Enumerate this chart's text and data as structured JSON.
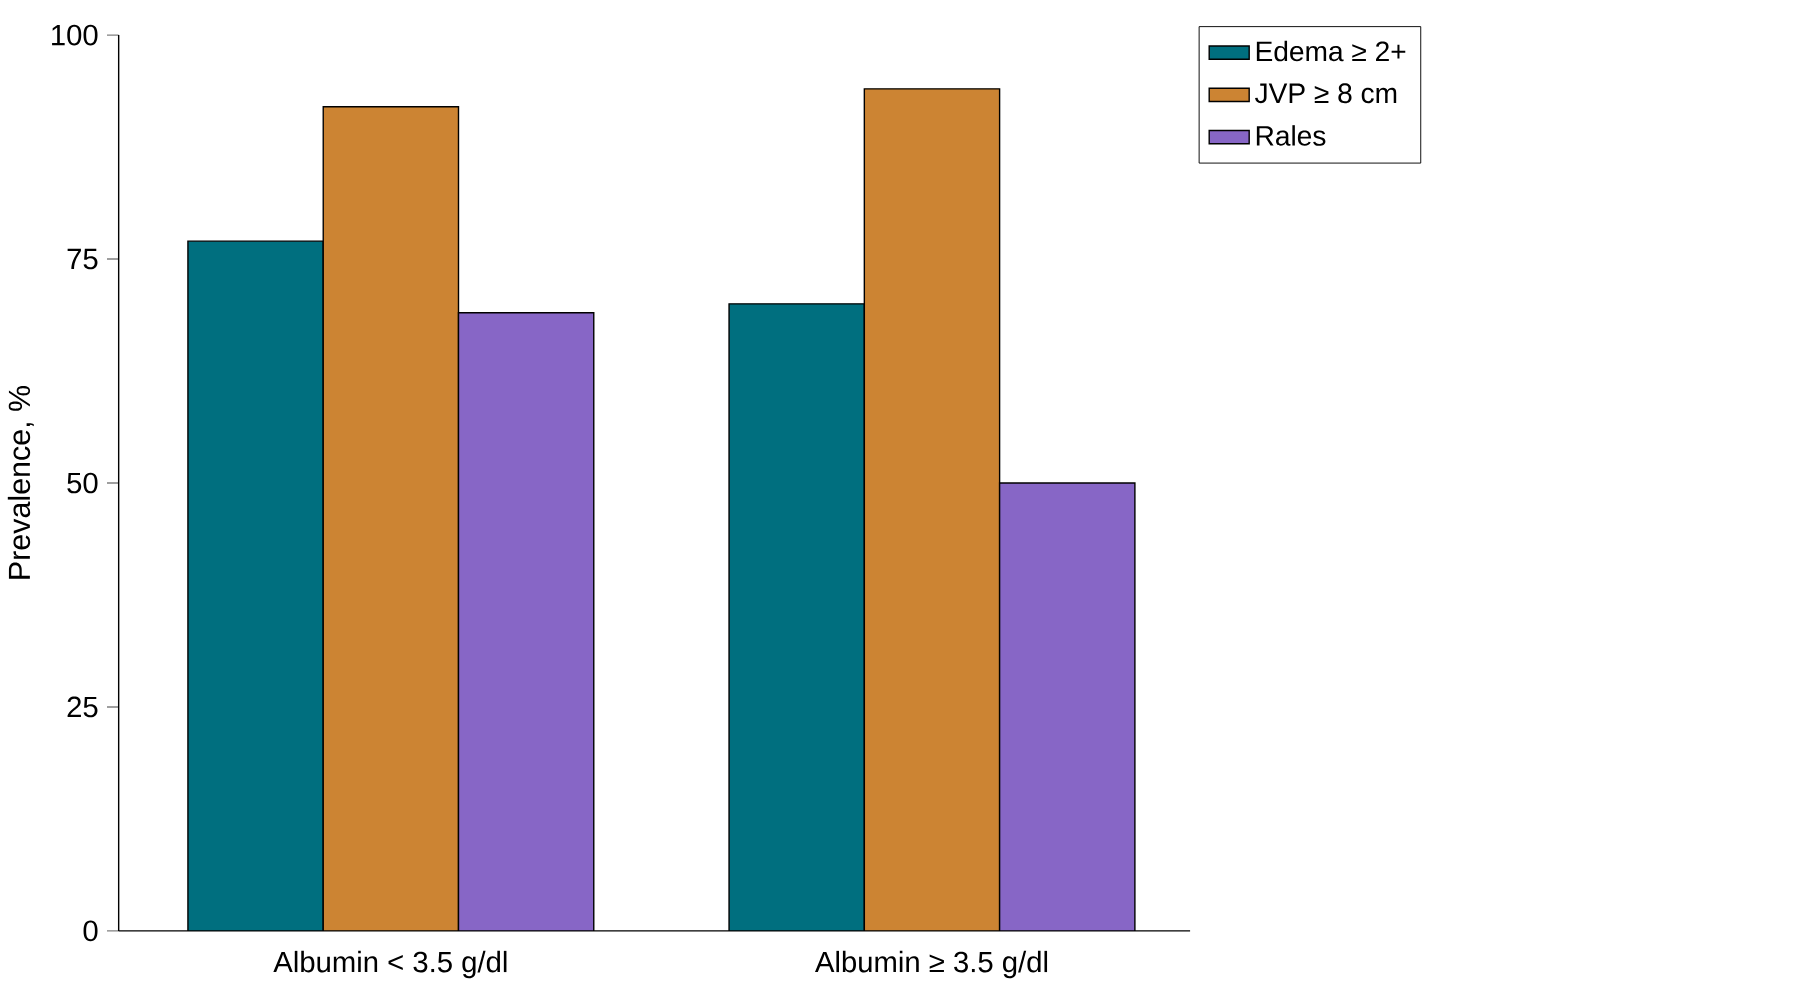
{
  "chart_data": {
    "type": "bar",
    "ylabel": "Prevalence, %",
    "categories": [
      "Albumin < 3.5 g/dl",
      "Albumin ≥ 3.5 g/dl"
    ],
    "series": [
      {
        "name": "Edema ≥ 2+",
        "color": "#006f7f",
        "values": [
          77,
          70
        ]
      },
      {
        "name": "JVP ≥ 8 cm",
        "color": "#cc8433",
        "values": [
          92,
          94
        ]
      },
      {
        "name": "Rales",
        "color": "#8766c6",
        "values": [
          69,
          50
        ]
      }
    ],
    "ylim": [
      0,
      100
    ],
    "yticks": [
      0,
      25,
      50,
      75,
      100
    ],
    "legend": "top right"
  }
}
